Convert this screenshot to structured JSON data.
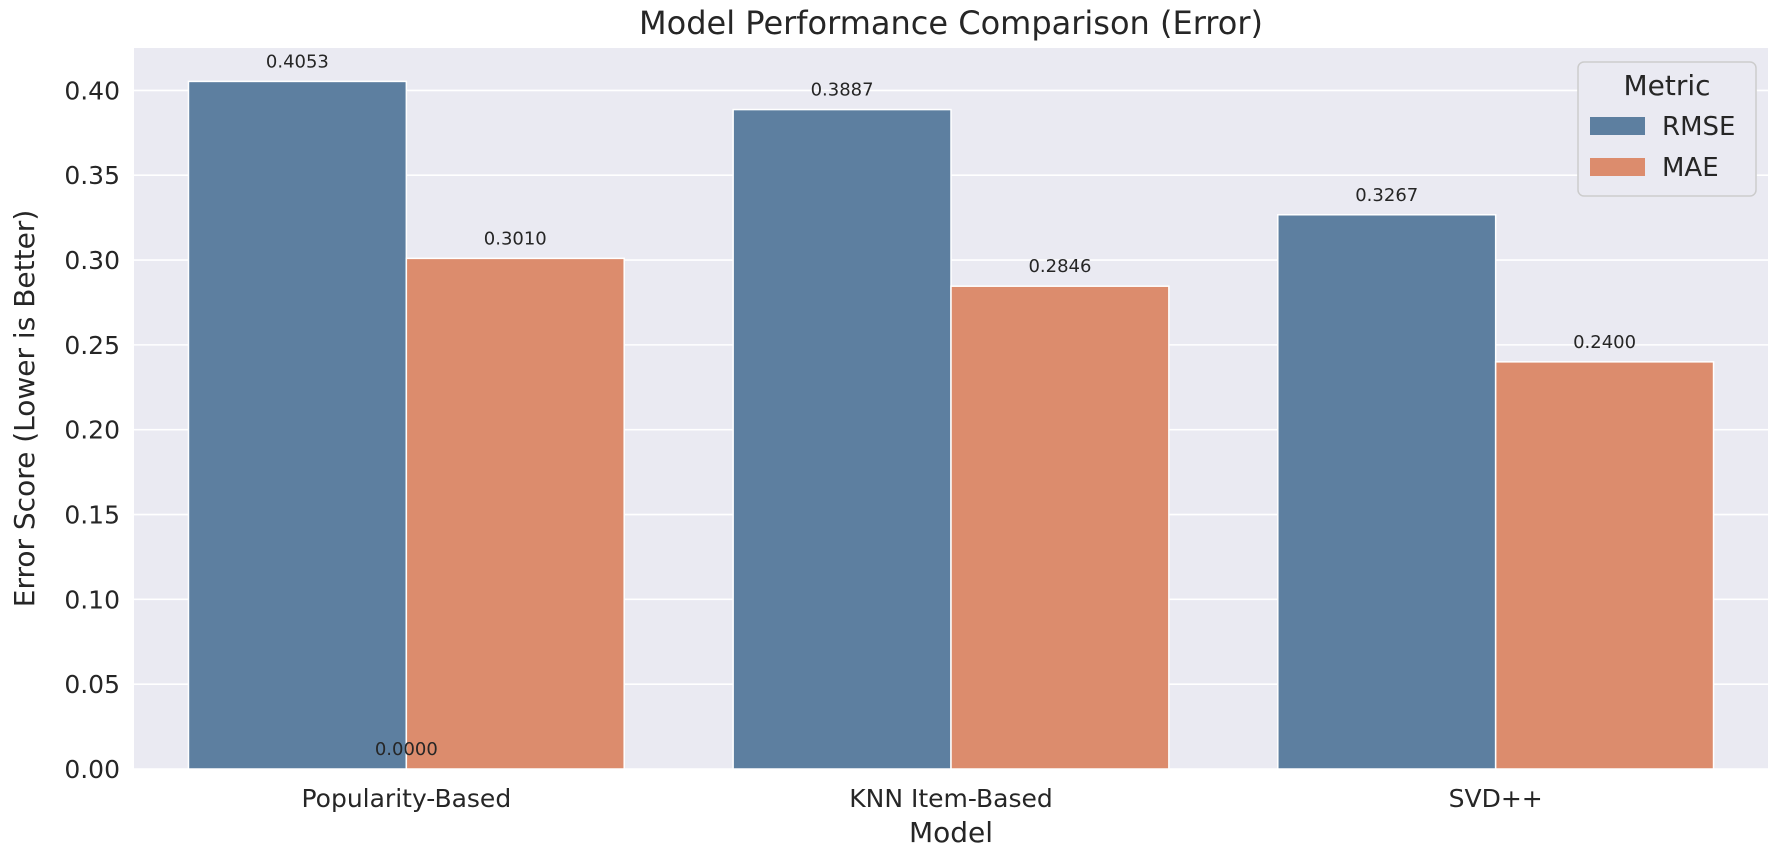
{
  "chart_data": {
    "type": "bar",
    "title": "Model Performance Comparison (Error)",
    "xlabel": "Model",
    "ylabel": "Error Score (Lower is Better)",
    "categories": [
      "Popularity-Based",
      "KNN Item-Based",
      "SVD++"
    ],
    "series": [
      {
        "name": "RMSE",
        "color": "#5d7fa0",
        "values": [
          0.4053,
          0.3887,
          0.3267
        ]
      },
      {
        "name": "MAE",
        "color": "#dc8c6d",
        "values": [
          0.301,
          0.2846,
          0.24
        ]
      }
    ],
    "data_labels": {
      "RMSE": [
        "0.4053",
        "0.3887",
        "0.3267"
      ],
      "MAE": [
        "0.3010",
        "0.2846",
        "0.2400"
      ]
    },
    "extra_annotation": {
      "text": "0.0000",
      "x_category": "Popularity-Based",
      "y": 0
    },
    "ylim": [
      0,
      0.425
    ],
    "yticks": [
      0.0,
      0.05,
      0.1,
      0.15,
      0.2,
      0.25,
      0.3,
      0.35,
      0.4
    ],
    "ytick_labels": [
      "0.00",
      "0.05",
      "0.10",
      "0.15",
      "0.20",
      "0.25",
      "0.30",
      "0.35",
      "0.40"
    ],
    "grid": true,
    "legend": {
      "title": "Metric",
      "position": "top-right"
    },
    "background_color": "#eaeaf2",
    "grid_color": "#ffffff"
  }
}
